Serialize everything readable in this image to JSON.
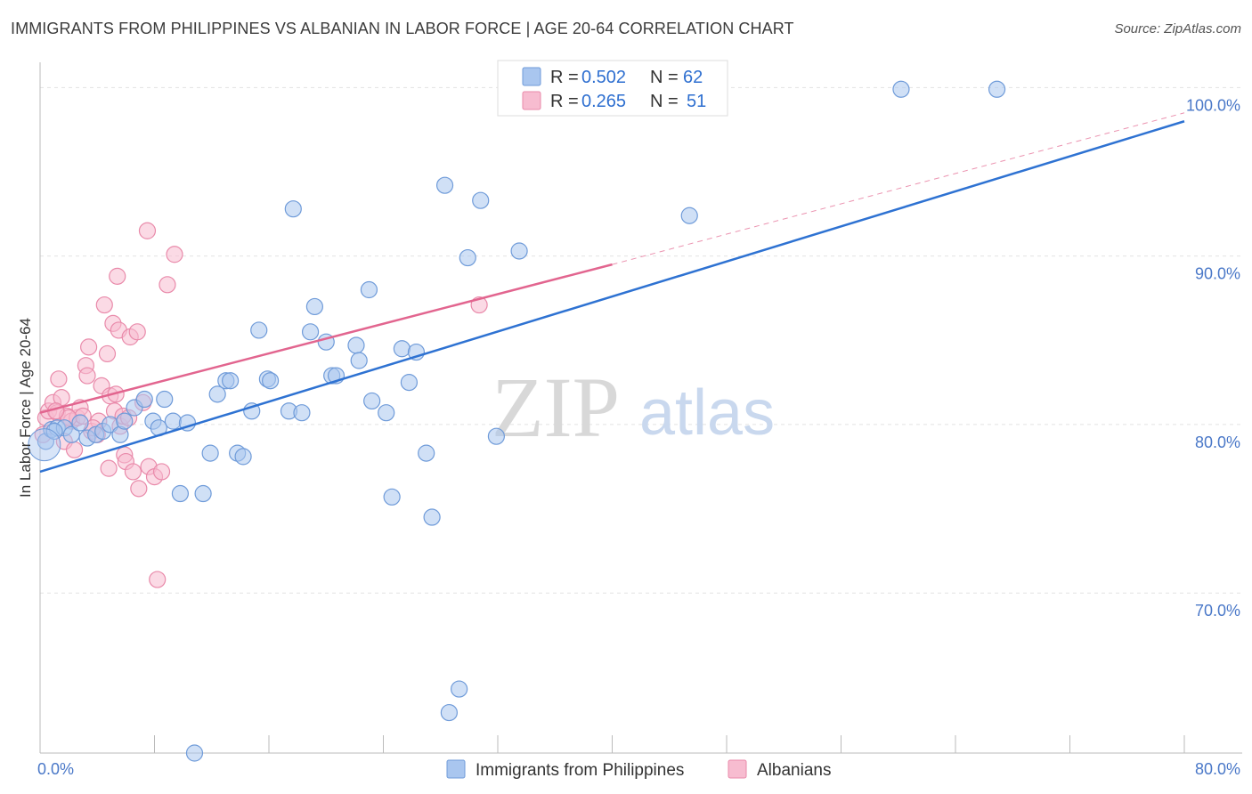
{
  "title": "IMMIGRANTS FROM PHILIPPINES VS ALBANIAN IN LABOR FORCE | AGE 20-64 CORRELATION CHART",
  "source": "Source: ZipAtlas.com",
  "watermark": {
    "zip": "ZIP",
    "atlas": "atlas"
  },
  "legend": {
    "r_label": "R =",
    "n_label": "N =",
    "entries": [
      {
        "r": "0.502",
        "n": "62"
      },
      {
        "r": "0.265",
        "n": "51"
      }
    ]
  },
  "bottom_legend": [
    "Immigrants from Philippines",
    "Albanians"
  ],
  "chart_data": {
    "type": "scatter",
    "title": "IMMIGRANTS FROM PHILIPPINES VS ALBANIAN IN LABOR FORCE | AGE 20-64 CORRELATION CHART",
    "xlabel": "",
    "ylabel": "In Labor Force | Age 20-64",
    "xlim": [
      0,
      80
    ],
    "ylim": [
      60.5,
      101.5
    ],
    "x_tick_labels": [
      {
        "value": 0,
        "label": "0.0%"
      },
      {
        "value": 80,
        "label": "80.0%"
      }
    ],
    "y_tick_labels": [
      {
        "value": 70,
        "label": "70.0%"
      },
      {
        "value": 80,
        "label": "80.0%"
      },
      {
        "value": 90,
        "label": "90.0%"
      },
      {
        "value": 100,
        "label": "100.0%"
      }
    ],
    "colors": {
      "philippines_fill": "#a9c6ef",
      "philippines_stroke": "#6f9bd9",
      "philippines_line": "#2e72d2",
      "albanians_fill": "#f7bcd0",
      "albanians_stroke": "#e98aaa",
      "albanians_line": "#e2658f",
      "tick_label": "#4a78c8"
    },
    "series": [
      {
        "name": "Immigrants from Philippines",
        "r": 0.502,
        "n": 62,
        "trend": {
          "x": [
            0,
            80
          ],
          "y": [
            77.2,
            98.0
          ],
          "style": "solid"
        },
        "points": [
          [
            0.4,
            79.0
          ],
          [
            0.8,
            79.7
          ],
          [
            1.2,
            79.8
          ],
          [
            1.7,
            79.8
          ],
          [
            2.2,
            79.4
          ],
          [
            2.8,
            80.1
          ],
          [
            3.3,
            79.2
          ],
          [
            3.9,
            79.4
          ],
          [
            4.4,
            79.6
          ],
          [
            4.9,
            80.0
          ],
          [
            5.6,
            79.4
          ],
          [
            5.9,
            80.2
          ],
          [
            6.6,
            81.0
          ],
          [
            7.3,
            81.5
          ],
          [
            7.9,
            80.2
          ],
          [
            8.3,
            79.8
          ],
          [
            8.7,
            81.5
          ],
          [
            9.3,
            80.2
          ],
          [
            10.3,
            80.1
          ],
          [
            9.8,
            75.9
          ],
          [
            11.4,
            75.9
          ],
          [
            11.9,
            78.3
          ],
          [
            12.4,
            81.8
          ],
          [
            13.0,
            82.6
          ],
          [
            13.3,
            82.6
          ],
          [
            13.8,
            78.3
          ],
          [
            14.2,
            78.1
          ],
          [
            14.8,
            80.8
          ],
          [
            15.3,
            85.6
          ],
          [
            15.9,
            82.7
          ],
          [
            16.1,
            82.6
          ],
          [
            17.4,
            80.8
          ],
          [
            17.7,
            92.8
          ],
          [
            18.3,
            80.7
          ],
          [
            18.9,
            85.5
          ],
          [
            19.2,
            87.0
          ],
          [
            20.0,
            84.9
          ],
          [
            20.4,
            82.9
          ],
          [
            20.7,
            82.9
          ],
          [
            22.1,
            84.7
          ],
          [
            22.3,
            83.8
          ],
          [
            23.0,
            88.0
          ],
          [
            23.2,
            81.4
          ],
          [
            24.2,
            80.7
          ],
          [
            24.6,
            75.7
          ],
          [
            25.3,
            84.5
          ],
          [
            25.8,
            82.5
          ],
          [
            26.3,
            84.3
          ],
          [
            27.0,
            78.3
          ],
          [
            27.4,
            74.5
          ],
          [
            28.3,
            94.2
          ],
          [
            29.3,
            64.3
          ],
          [
            29.9,
            89.9
          ],
          [
            30.8,
            93.3
          ],
          [
            31.9,
            79.3
          ],
          [
            33.5,
            90.3
          ],
          [
            45.4,
            92.4
          ],
          [
            60.2,
            99.9
          ],
          [
            66.9,
            99.9
          ],
          [
            28.6,
            62.9
          ],
          [
            10.8,
            60.5
          ],
          [
            1.0,
            79.6
          ]
        ]
      },
      {
        "name": "Albanians",
        "r": 0.265,
        "n": 51,
        "trend": {
          "x": [
            0,
            40
          ],
          "y": [
            80.7,
            89.5
          ],
          "extended_x": [
            40,
            80
          ],
          "extended_y": [
            89.5,
            98.5
          ],
          "style": "solid then dashed"
        },
        "points": [
          [
            0.2,
            79.4
          ],
          [
            0.4,
            80.4
          ],
          [
            0.6,
            80.8
          ],
          [
            0.9,
            81.3
          ],
          [
            1.2,
            80.7
          ],
          [
            1.3,
            82.7
          ],
          [
            1.5,
            81.6
          ],
          [
            1.7,
            79.0
          ],
          [
            1.9,
            80.5
          ],
          [
            2.2,
            80.2
          ],
          [
            2.4,
            78.5
          ],
          [
            2.6,
            80.4
          ],
          [
            2.8,
            81.0
          ],
          [
            3.0,
            80.5
          ],
          [
            3.2,
            83.5
          ],
          [
            3.3,
            82.9
          ],
          [
            3.4,
            84.6
          ],
          [
            3.6,
            79.6
          ],
          [
            4.0,
            79.4
          ],
          [
            4.1,
            80.2
          ],
          [
            4.3,
            82.3
          ],
          [
            4.5,
            87.1
          ],
          [
            4.7,
            84.2
          ],
          [
            4.9,
            81.7
          ],
          [
            4.8,
            77.4
          ],
          [
            5.1,
            86.0
          ],
          [
            5.2,
            80.8
          ],
          [
            5.3,
            81.8
          ],
          [
            5.4,
            88.8
          ],
          [
            5.5,
            85.6
          ],
          [
            5.6,
            79.9
          ],
          [
            5.8,
            80.5
          ],
          [
            5.9,
            78.2
          ],
          [
            6.0,
            77.8
          ],
          [
            6.3,
            85.2
          ],
          [
            6.5,
            77.2
          ],
          [
            6.8,
            85.5
          ],
          [
            6.9,
            76.2
          ],
          [
            7.2,
            81.3
          ],
          [
            7.5,
            91.5
          ],
          [
            7.6,
            77.5
          ],
          [
            8.0,
            76.9
          ],
          [
            8.2,
            70.8
          ],
          [
            8.5,
            77.2
          ],
          [
            8.9,
            88.3
          ],
          [
            9.4,
            90.1
          ],
          [
            30.7,
            87.1
          ],
          [
            2.0,
            80.4
          ],
          [
            3.7,
            79.8
          ],
          [
            6.2,
            80.4
          ],
          [
            1.1,
            80.8
          ]
        ]
      }
    ]
  }
}
